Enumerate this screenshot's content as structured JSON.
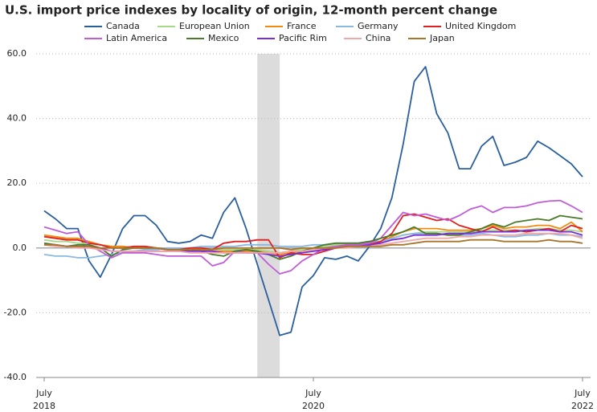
{
  "chart_data": {
    "type": "line",
    "title": "U.S. import price indexes by locality of origin, 12-month percent change",
    "x": [
      "2018-07",
      "2018-08",
      "2018-09",
      "2018-10",
      "2018-11",
      "2018-12",
      "2019-01",
      "2019-02",
      "2019-03",
      "2019-04",
      "2019-05",
      "2019-06",
      "2019-07",
      "2019-08",
      "2019-09",
      "2019-10",
      "2019-11",
      "2019-12",
      "2020-01",
      "2020-02",
      "2020-03",
      "2020-04",
      "2020-05",
      "2020-06",
      "2020-07",
      "2020-08",
      "2020-09",
      "2020-10",
      "2020-11",
      "2020-12",
      "2021-01",
      "2021-02",
      "2021-03",
      "2021-04",
      "2021-05",
      "2021-06",
      "2021-07",
      "2021-08",
      "2021-09",
      "2021-10",
      "2021-11",
      "2021-12",
      "2022-01",
      "2022-02",
      "2022-03",
      "2022-04",
      "2022-05",
      "2022-06",
      "2022-07"
    ],
    "xticks": [
      {
        "value": "2018-07",
        "label": "July",
        "year": "2018"
      },
      {
        "value": "2020-07",
        "label": "July",
        "year": "2020"
      },
      {
        "value": "2022-07",
        "label": "July",
        "year": "2022"
      }
    ],
    "shaded": [
      "2020-02",
      "2020-04"
    ],
    "ylim": [
      -40,
      60
    ],
    "yticks": [
      {
        "value": -40,
        "label": "-40.0"
      },
      {
        "value": -20,
        "label": "-20.0"
      },
      {
        "value": 0,
        "label": "0.0"
      },
      {
        "value": 20,
        "label": "20.0"
      },
      {
        "value": 40,
        "label": "40.0"
      },
      {
        "value": 60,
        "label": "60.0"
      }
    ],
    "grid": true,
    "series": [
      {
        "name": "Canada",
        "color": "#2a5f9e",
        "values": [
          11.5,
          9,
          6,
          6,
          -4,
          -9,
          -2,
          6,
          10,
          10,
          7,
          2,
          1.5,
          2,
          4,
          3,
          11,
          15.5,
          6,
          -5,
          -16,
          -27,
          -26,
          -12,
          -8.5,
          -3,
          -3.5,
          -2.5,
          -4,
          0.5,
          6,
          15.5,
          32,
          51.5,
          56,
          41.5,
          35.5,
          24.5,
          24.5,
          31.5,
          34.5,
          25.5,
          26.5,
          28,
          33,
          31,
          28.5,
          26,
          22
        ]
      },
      {
        "name": "European Union",
        "color": "#a8d88a",
        "values": [
          2.5,
          2,
          2,
          1.5,
          1.5,
          1,
          0.5,
          0.5,
          0,
          0,
          0,
          -0.5,
          -0.5,
          -0.5,
          -0.5,
          -0.5,
          -0.5,
          -0.5,
          -0.5,
          -0.5,
          -1,
          -1.5,
          -1,
          -0.5,
          0,
          0.5,
          1,
          1.5,
          1.5,
          2,
          2,
          3,
          4,
          4.5,
          5,
          5,
          5,
          5,
          5,
          5.5,
          5.5,
          5.5,
          5.5,
          5.5,
          6,
          6,
          5.5,
          5.5,
          5
        ]
      },
      {
        "name": "France",
        "color": "#f08a10",
        "values": [
          4,
          3.5,
          3,
          3,
          2,
          1,
          0.5,
          0.5,
          0,
          0,
          0,
          -0.5,
          -0.5,
          -0.5,
          -0.5,
          -1,
          -1,
          -1,
          -1,
          -1,
          -1.5,
          -2,
          -1.5,
          -1,
          -0.5,
          0,
          0.5,
          1,
          1,
          1.5,
          2,
          3.5,
          5,
          6,
          6,
          6,
          5.5,
          5.5,
          5.5,
          6,
          7,
          6,
          6.5,
          6.5,
          7,
          7,
          6,
          8,
          5
        ]
      },
      {
        "name": "Germany",
        "color": "#8ab8e0",
        "values": [
          -2,
          -2.5,
          -2.5,
          -3,
          -3,
          -2.5,
          -2,
          -1.5,
          -1,
          -0.5,
          -0.5,
          0,
          0,
          0,
          0.5,
          0.5,
          0.5,
          0.5,
          1,
          1,
          1,
          0.5,
          0.5,
          0.5,
          1,
          1,
          1.5,
          1.5,
          1.5,
          2,
          2,
          3,
          4,
          4.5,
          4.5,
          4.5,
          4,
          4,
          4,
          4.5,
          4,
          3.5,
          3.5,
          4,
          4,
          4.5,
          4,
          4,
          3.5
        ]
      },
      {
        "name": "United Kingdom",
        "color": "#e02020",
        "values": [
          3.5,
          3,
          2.5,
          2.5,
          1.5,
          1,
          0,
          0,
          0.5,
          0.5,
          0,
          -0.5,
          -0.5,
          0,
          0,
          -0.5,
          1.5,
          2,
          2,
          2.5,
          2.5,
          -3,
          -1.5,
          -2,
          -2,
          -1,
          0,
          0.5,
          0.5,
          1,
          2,
          4.5,
          10,
          10.5,
          9.5,
          8.5,
          9,
          7,
          6,
          5,
          6.5,
          5,
          5.5,
          5,
          5.5,
          6,
          5,
          7,
          6
        ]
      },
      {
        "name": "Latin America",
        "color": "#c05cd8",
        "values": [
          6.5,
          5.5,
          4.5,
          5,
          1,
          -1,
          -3,
          -1.5,
          -1.5,
          -1.5,
          -2,
          -2.5,
          -2.5,
          -2.5,
          -2.5,
          -5.5,
          -4.5,
          -1,
          -1.5,
          -1.5,
          -5,
          -8,
          -7,
          -4,
          -2,
          0,
          0.5,
          1,
          1,
          1.5,
          3,
          7,
          11,
          10,
          10.5,
          9.5,
          8.5,
          10,
          12,
          13,
          11,
          12.5,
          12.5,
          13,
          14,
          14.5,
          14.7,
          13,
          11
        ]
      },
      {
        "name": "Mexico",
        "color": "#4a7a2a",
        "values": [
          1.5,
          1,
          0.5,
          1,
          1,
          0,
          -2.5,
          -0.5,
          0,
          0,
          0,
          -0.5,
          -1,
          -0.5,
          -1,
          -2,
          -2.5,
          -1,
          -0.5,
          -1,
          -2,
          -3.5,
          -2.5,
          -1,
          0,
          1,
          1.5,
          1.5,
          1.5,
          2,
          3,
          4,
          5,
          6.5,
          4.5,
          4.5,
          4,
          4,
          5,
          6,
          7.5,
          6.5,
          8,
          8.5,
          9,
          8.5,
          10,
          9.5,
          9
        ]
      },
      {
        "name": "Pacific Rim",
        "color": "#7a2ed8",
        "values": [
          1,
          1,
          0.5,
          0.5,
          0.5,
          0,
          -1,
          -1,
          -1,
          -1,
          -1,
          -1,
          -1,
          -1,
          -1,
          -1,
          -1.5,
          -1.5,
          -1.5,
          -1.5,
          -2,
          -2.5,
          -2,
          -1.5,
          -1,
          -0.5,
          0,
          0.5,
          0.5,
          1,
          1.5,
          2.5,
          3,
          4,
          4,
          4,
          4.5,
          4.5,
          4.5,
          5,
          5,
          5,
          5,
          5.5,
          5.5,
          5.5,
          5,
          5,
          4
        ]
      },
      {
        "name": "China",
        "color": "#f0a8a8",
        "values": [
          1,
          0.5,
          0.5,
          0,
          0,
          -0.5,
          -1,
          -1,
          -1,
          -1,
          -1,
          -1,
          -1,
          -1.5,
          -1.5,
          -1.5,
          -1.5,
          -1.5,
          -1.5,
          -1.5,
          -1.5,
          -1.5,
          -1,
          -1,
          -0.5,
          0,
          0,
          0,
          0.5,
          0.5,
          1,
          1.5,
          2,
          2.5,
          3,
          3,
          3,
          3.5,
          3.5,
          4,
          4,
          4,
          4,
          4.5,
          4.5,
          4.5,
          4.5,
          4,
          3
        ]
      },
      {
        "name": "Japan",
        "color": "#a8762a",
        "values": [
          1,
          1,
          0.5,
          0.5,
          0.5,
          0,
          0,
          0,
          0,
          0,
          0,
          -0.5,
          -0.5,
          -0.5,
          -0.5,
          -0.5,
          0,
          0,
          0,
          0,
          0,
          0,
          -0.5,
          0,
          0,
          0,
          0,
          0.5,
          0.5,
          0.5,
          0.5,
          1,
          1,
          1.5,
          2,
          2,
          2,
          2,
          2.5,
          2.5,
          2.5,
          2,
          2,
          2,
          2,
          2.5,
          2,
          2,
          1.5
        ]
      }
    ]
  }
}
